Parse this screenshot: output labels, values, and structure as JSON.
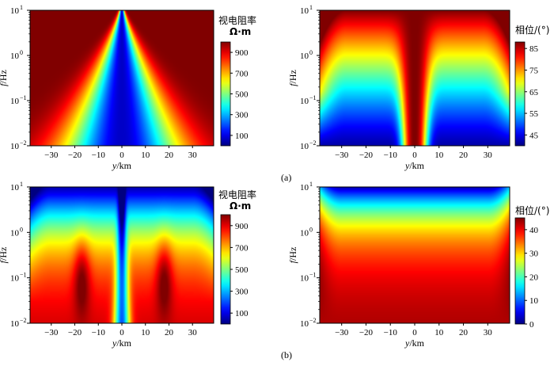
{
  "chart_data": [
    {
      "type": "heatmap",
      "id": "a-resistivity",
      "panel": "(a)",
      "quantity": "apparent resistivity",
      "xlabel": {
        "var": "y",
        "unit": "/km"
      },
      "ylabel": {
        "var": "f",
        "unit": "/Hz"
      },
      "xlim": [
        -39,
        39
      ],
      "xticks": [
        "-30",
        "-20",
        "-10",
        "0",
        "10",
        "20",
        "30"
      ],
      "xtick_values": [
        -30,
        -20,
        -10,
        0,
        10,
        20,
        30
      ],
      "ylim_log10": [
        -2,
        1
      ],
      "yticks": [
        {
          "base": "10",
          "exp": "1"
        },
        {
          "base": "10",
          "exp": "0"
        },
        {
          "base": "10",
          "exp": "-1"
        },
        {
          "base": "10",
          "exp": "-2"
        }
      ],
      "ytick_values": [
        1,
        0,
        -1,
        -2
      ],
      "colorbar": {
        "title": "视电阻率",
        "unit": "Ω·m",
        "range": [
          0,
          1000
        ],
        "ticks": [
          "900",
          "700",
          "500",
          "300",
          "100"
        ],
        "tick_values": [
          900,
          700,
          500,
          300,
          100
        ],
        "colormap": "jet"
      },
      "field": {
        "kind": "res_a",
        "background": 1000,
        "center_min": 70,
        "width_low_freq_km": 24,
        "width_high_freq_km": 1
      }
    },
    {
      "type": "heatmap",
      "id": "a-phase",
      "panel": "(a)",
      "quantity": "phase",
      "xlabel": {
        "var": "y",
        "unit": "/km"
      },
      "ylabel": {
        "var": "f",
        "unit": "/Hz"
      },
      "xlim": [
        -39,
        39
      ],
      "xticks": [
        "-30",
        "-20",
        "-10",
        "0",
        "10",
        "20",
        "30"
      ],
      "xtick_values": [
        -30,
        -20,
        -10,
        0,
        10,
        20,
        30
      ],
      "ylim_log10": [
        -2,
        1
      ],
      "yticks": [
        {
          "base": "10",
          "exp": "1"
        },
        {
          "base": "10",
          "exp": "0"
        },
        {
          "base": "10",
          "exp": "-1"
        },
        {
          "base": "10",
          "exp": "-2"
        }
      ],
      "ytick_values": [
        1,
        0,
        -1,
        -2
      ],
      "colorbar": {
        "title": "相位/(°)",
        "unit": "",
        "range": [
          40,
          88
        ],
        "ticks": [
          "85",
          "75",
          "65",
          "55",
          "45"
        ],
        "tick_values": [
          85,
          75,
          65,
          55,
          45
        ],
        "colormap": "jet"
      },
      "field": {
        "kind": "phase_a",
        "low_freq_value": 42,
        "high_freq_value": 88,
        "center_value": 88
      }
    },
    {
      "type": "heatmap",
      "id": "b-resistivity",
      "panel": "(b)",
      "quantity": "apparent resistivity",
      "xlabel": {
        "var": "y",
        "unit": "/km"
      },
      "ylabel": {
        "var": "f",
        "unit": "/Hz"
      },
      "xlim": [
        -39,
        39
      ],
      "xticks": [
        "-30",
        "-20",
        "-10",
        "0",
        "10",
        "20",
        "30"
      ],
      "xtick_values": [
        -30,
        -20,
        -10,
        0,
        10,
        20,
        30
      ],
      "ylim_log10": [
        -2,
        1
      ],
      "yticks": [
        {
          "base": "10",
          "exp": "1"
        },
        {
          "base": "10",
          "exp": "0"
        },
        {
          "base": "10",
          "exp": "-1"
        },
        {
          "base": "10",
          "exp": "-2"
        }
      ],
      "ytick_values": [
        1,
        0,
        -1,
        -2
      ],
      "colorbar": {
        "title": "视电阻率",
        "unit": "Ω·m",
        "range": [
          0,
          1000
        ],
        "ticks": [
          "900",
          "700",
          "500",
          "300",
          "100"
        ],
        "tick_values": [
          900,
          700,
          500,
          300,
          100
        ],
        "colormap": "jet"
      },
      "field": {
        "kind": "res_b",
        "high_freq_value": 50,
        "low_freq_value": 950,
        "bump_y_km": [
          -17,
          18
        ]
      }
    },
    {
      "type": "heatmap",
      "id": "b-phase",
      "panel": "(b)",
      "quantity": "phase",
      "xlabel": {
        "var": "y",
        "unit": "/km"
      },
      "ylabel": {
        "var": "f",
        "unit": "/Hz"
      },
      "xlim": [
        -39,
        39
      ],
      "xticks": [
        "-30",
        "-20",
        "-10",
        "0",
        "10",
        "20",
        "30"
      ],
      "xtick_values": [
        -30,
        -20,
        -10,
        0,
        10,
        20,
        30
      ],
      "ylim_log10": [
        -2,
        1
      ],
      "yticks": [
        {
          "base": "10",
          "exp": "1"
        },
        {
          "base": "10",
          "exp": "0"
        },
        {
          "base": "10",
          "exp": "-1"
        },
        {
          "base": "10",
          "exp": "-2"
        }
      ],
      "ytick_values": [
        1,
        0,
        -1,
        -2
      ],
      "colorbar": {
        "title": "相位/(°)",
        "unit": "",
        "range": [
          0,
          45
        ],
        "ticks": [
          "40",
          "30",
          "20",
          "10",
          "0"
        ],
        "tick_values": [
          40,
          30,
          20,
          10,
          0
        ],
        "colormap": "jet"
      },
      "field": {
        "kind": "phase_b",
        "high_freq_value": 2,
        "low_freq_value": 44
      }
    }
  ],
  "labels": {
    "a": "(a)",
    "b": "(b)"
  }
}
